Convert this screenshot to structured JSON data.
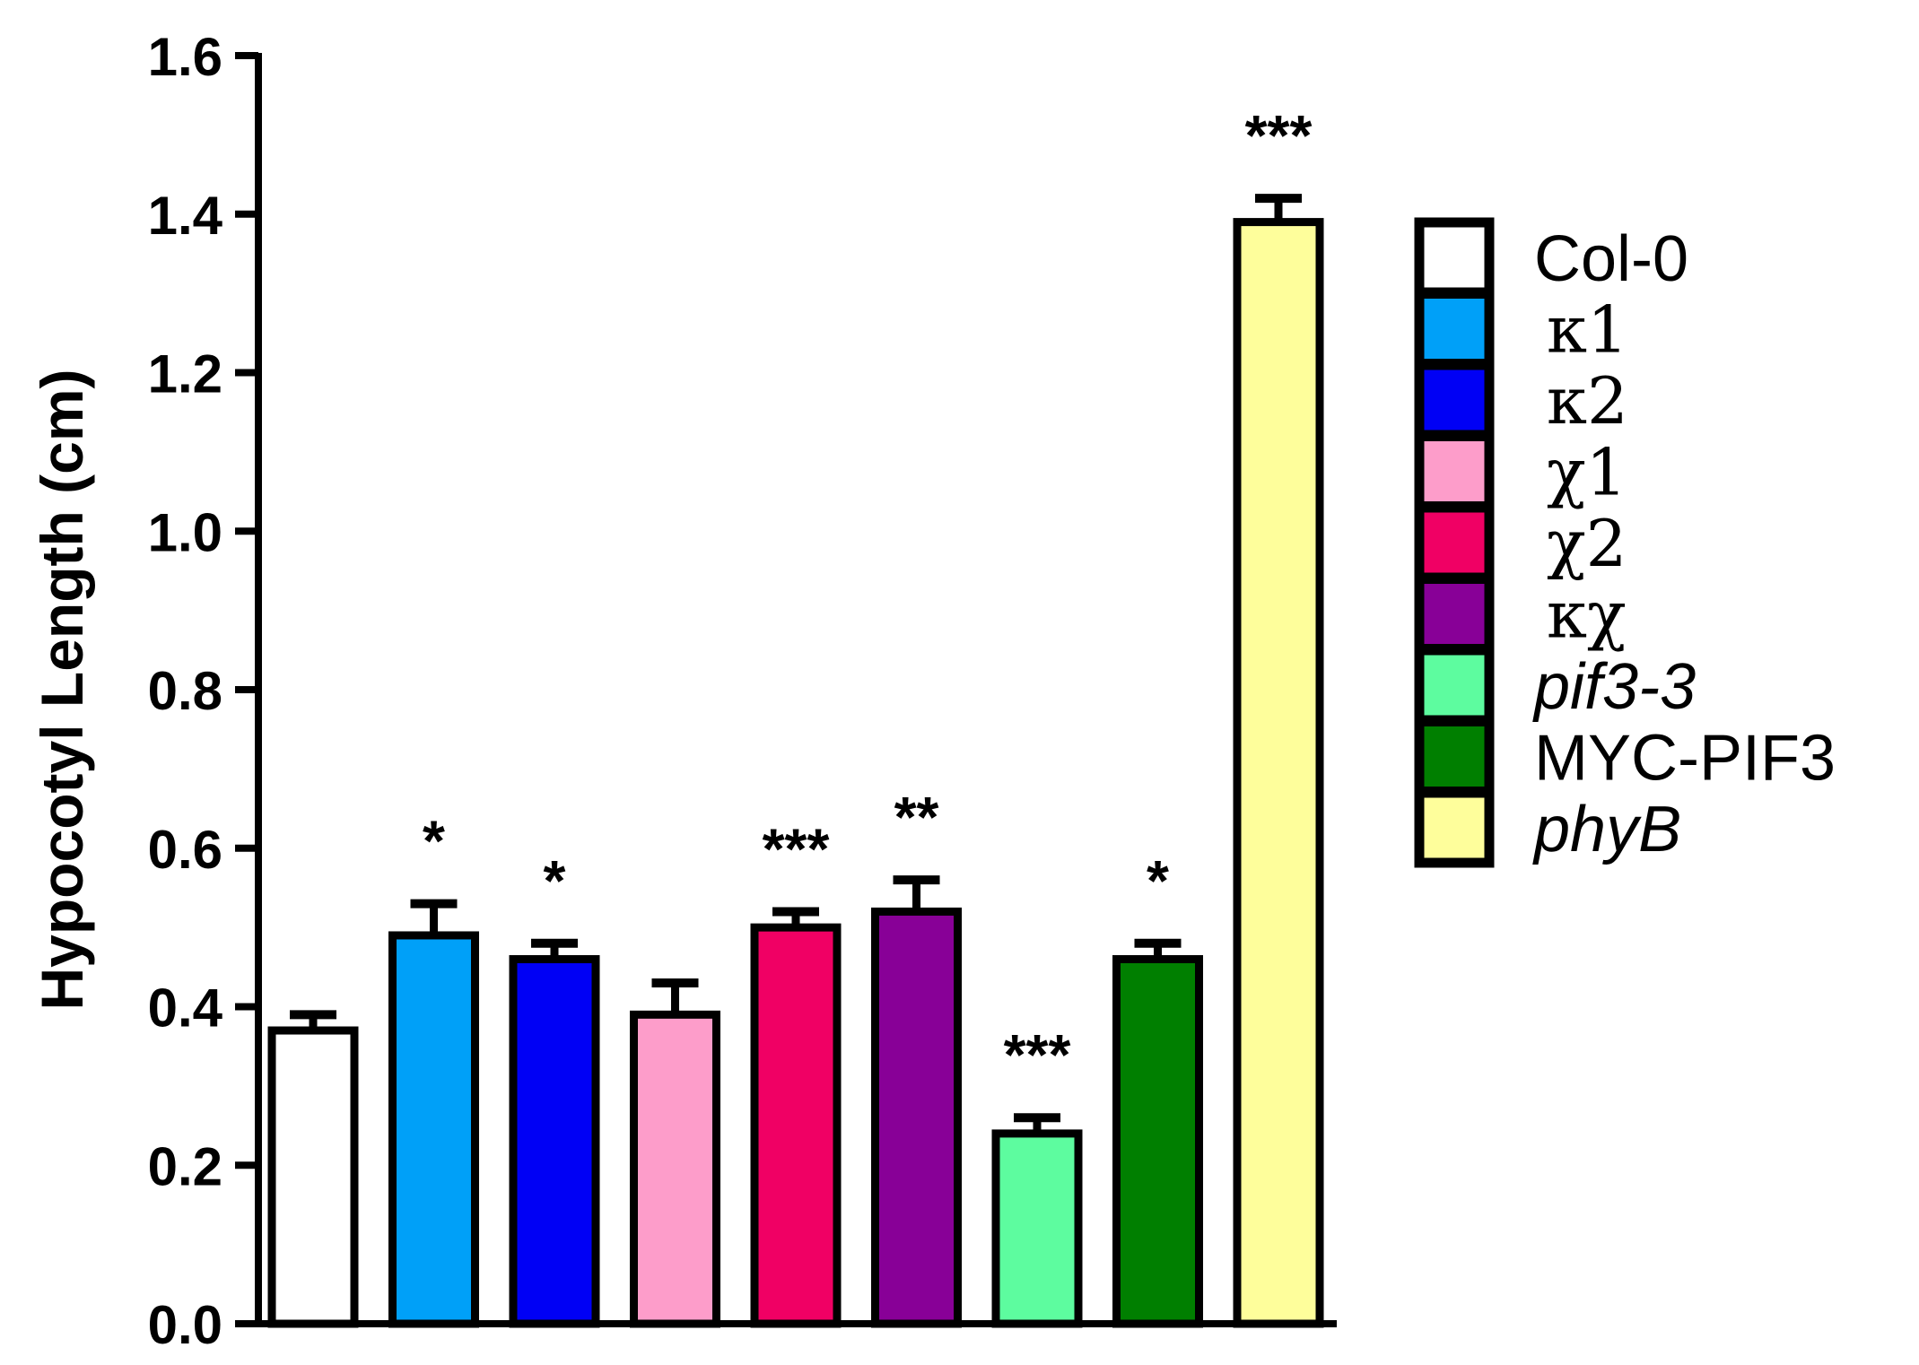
{
  "chart_data": {
    "type": "bar",
    "title": "",
    "xlabel": "",
    "ylabel": "Hypocotyl Length (cm)",
    "ylim": [
      0,
      1.6
    ],
    "yticks": [
      "0.0",
      "0.2",
      "0.4",
      "0.6",
      "0.8",
      "1.0",
      "1.2",
      "1.4",
      "1.6"
    ],
    "grid": false,
    "legend_position": "right",
    "bars": [
      {
        "label": "Col-0",
        "italic": false,
        "greek": false,
        "value": 0.37,
        "error": 0.02,
        "significance": "",
        "color": "#ffffff"
      },
      {
        "label": "κ1",
        "italic": false,
        "greek": true,
        "value": 0.49,
        "error": 0.04,
        "significance": "*",
        "color": "#00a0f8"
      },
      {
        "label": "κ2",
        "italic": false,
        "greek": true,
        "value": 0.46,
        "error": 0.02,
        "significance": "*",
        "color": "#0000f5"
      },
      {
        "label": "χ1",
        "italic": false,
        "greek": true,
        "value": 0.39,
        "error": 0.04,
        "significance": "",
        "color": "#fd9dca"
      },
      {
        "label": "χ2",
        "italic": false,
        "greek": true,
        "value": 0.5,
        "error": 0.02,
        "significance": "***",
        "color": "#f00064"
      },
      {
        "label": "κχ",
        "italic": false,
        "greek": true,
        "value": 0.52,
        "error": 0.04,
        "significance": "**",
        "color": "#880097"
      },
      {
        "label": "pif3-3",
        "italic": true,
        "greek": false,
        "value": 0.24,
        "error": 0.02,
        "significance": "***",
        "color": "#5dfc9f"
      },
      {
        "label": "MYC-PIF3",
        "italic": false,
        "greek": false,
        "value": 0.46,
        "error": 0.02,
        "significance": "*",
        "color": "#007f00"
      },
      {
        "label": "phyB",
        "italic": true,
        "greek": false,
        "value": 1.39,
        "error": 0.03,
        "significance": "***",
        "color": "#fefe9b"
      }
    ]
  }
}
